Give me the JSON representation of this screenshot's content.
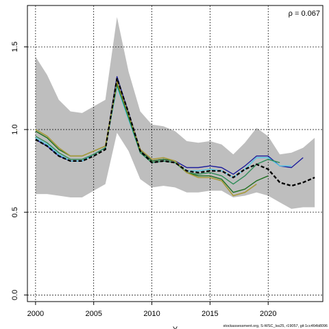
{
  "chart_data": {
    "type": "line",
    "title": "",
    "xlabel": "Y",
    "ylabel": "",
    "xlim": [
      1999.3,
      2024.7
    ],
    "ylim": [
      -0.04,
      1.75
    ],
    "xticks": [
      2000,
      2005,
      2010,
      2015,
      2020
    ],
    "yticks": [
      0.0,
      0.5,
      1.0,
      1.5
    ],
    "ytick_labels": [
      "0.0",
      "0.5",
      "1.0",
      "1.5"
    ],
    "grid": true,
    "annotation": "ρ = 0.067",
    "footer": "stockassessment.org, S-WSC_lss25, r19057, git:1cc464b8096",
    "band": {
      "color": "#bebebe",
      "x": [
        2000,
        2001,
        2002,
        2003,
        2004,
        2005,
        2006,
        2007,
        2008,
        2009,
        2010,
        2011,
        2012,
        2013,
        2014,
        2015,
        2016,
        2017,
        2018,
        2019,
        2020,
        2021,
        2022,
        2023,
        2024
      ],
      "upper": [
        1.44,
        1.33,
        1.18,
        1.11,
        1.1,
        1.14,
        1.18,
        1.68,
        1.35,
        1.11,
        1.03,
        1.02,
        0.99,
        0.93,
        0.92,
        0.93,
        0.91,
        0.85,
        0.92,
        1.01,
        0.96,
        0.85,
        0.86,
        0.89,
        0.95
      ],
      "lower": [
        0.61,
        0.61,
        0.6,
        0.59,
        0.59,
        0.63,
        0.67,
        0.98,
        0.87,
        0.7,
        0.65,
        0.66,
        0.65,
        0.62,
        0.62,
        0.63,
        0.63,
        0.59,
        0.6,
        0.62,
        0.6,
        0.56,
        0.52,
        0.53,
        0.53
      ]
    },
    "series": [
      {
        "color": "#000000",
        "dashed": true,
        "width": 2.2,
        "x": [
          2000,
          2001,
          2002,
          2003,
          2004,
          2005,
          2006,
          2007,
          2008,
          2009,
          2010,
          2011,
          2012,
          2013,
          2014,
          2015,
          2016,
          2017,
          2018,
          2019,
          2020,
          2021,
          2022,
          2023,
          2024
        ],
        "values": [
          0.94,
          0.9,
          0.84,
          0.81,
          0.81,
          0.84,
          0.88,
          1.31,
          1.1,
          0.87,
          0.8,
          0.81,
          0.8,
          0.75,
          0.74,
          0.75,
          0.75,
          0.71,
          0.76,
          0.79,
          0.76,
          0.68,
          0.66,
          0.68,
          0.71
        ]
      },
      {
        "color": "#1c1c9c",
        "dashed": false,
        "width": 1.4,
        "x": [
          2000,
          2001,
          2002,
          2003,
          2004,
          2005,
          2006,
          2007,
          2008,
          2009,
          2010,
          2011,
          2012,
          2013,
          2014,
          2015,
          2016,
          2017,
          2018,
          2019,
          2020,
          2021,
          2022,
          2023
        ],
        "values": [
          0.94,
          0.9,
          0.84,
          0.81,
          0.81,
          0.85,
          0.89,
          1.32,
          1.1,
          0.88,
          0.81,
          0.82,
          0.81,
          0.77,
          0.77,
          0.78,
          0.77,
          0.73,
          0.78,
          0.84,
          0.84,
          0.78,
          0.77,
          0.83
        ]
      },
      {
        "color": "#55c8e6",
        "dashed": false,
        "width": 1.4,
        "x": [
          2000,
          2001,
          2002,
          2003,
          2004,
          2005,
          2006,
          2007,
          2008,
          2009,
          2010,
          2011,
          2012,
          2013,
          2014,
          2015,
          2016,
          2017,
          2018,
          2019,
          2020,
          2021,
          2022
        ],
        "values": [
          0.95,
          0.91,
          0.85,
          0.81,
          0.81,
          0.85,
          0.89,
          1.26,
          1.06,
          0.86,
          0.8,
          0.81,
          0.8,
          0.75,
          0.75,
          0.76,
          0.75,
          0.71,
          0.76,
          0.83,
          0.83,
          0.78,
          0.78
        ]
      },
      {
        "color": "#2e8b57",
        "dashed": false,
        "width": 1.4,
        "x": [
          2000,
          2001,
          2002,
          2003,
          2004,
          2005,
          2006,
          2007,
          2008,
          2009,
          2010,
          2011,
          2012,
          2013,
          2014,
          2015,
          2016,
          2017,
          2018,
          2019,
          2020,
          2021
        ],
        "values": [
          0.96,
          0.92,
          0.86,
          0.82,
          0.82,
          0.85,
          0.89,
          1.27,
          1.07,
          0.86,
          0.8,
          0.81,
          0.8,
          0.74,
          0.73,
          0.74,
          0.72,
          0.67,
          0.72,
          0.79,
          0.82,
          0.8
        ]
      },
      {
        "color": "#1e6e1e",
        "dashed": false,
        "width": 1.4,
        "x": [
          2000,
          2001,
          2002,
          2003,
          2004,
          2005,
          2006,
          2007,
          2008,
          2009,
          2010,
          2011,
          2012,
          2013,
          2014,
          2015,
          2016,
          2017,
          2018,
          2019,
          2020
        ],
        "values": [
          0.99,
          0.95,
          0.88,
          0.84,
          0.84,
          0.87,
          0.9,
          1.28,
          1.08,
          0.87,
          0.81,
          0.82,
          0.81,
          0.74,
          0.72,
          0.72,
          0.7,
          0.62,
          0.64,
          0.69,
          0.72
        ]
      },
      {
        "color": "#a89a3a",
        "dashed": false,
        "width": 1.6,
        "x": [
          2000,
          2001,
          2002,
          2003,
          2004,
          2005,
          2006,
          2007,
          2008,
          2009,
          2010,
          2011,
          2012,
          2013,
          2014,
          2015,
          2016,
          2017,
          2018,
          2019
        ],
        "values": [
          1.0,
          0.96,
          0.89,
          0.84,
          0.84,
          0.87,
          0.9,
          1.29,
          1.09,
          0.88,
          0.82,
          0.83,
          0.81,
          0.74,
          0.71,
          0.71,
          0.69,
          0.6,
          0.62,
          0.67
        ]
      }
    ]
  }
}
